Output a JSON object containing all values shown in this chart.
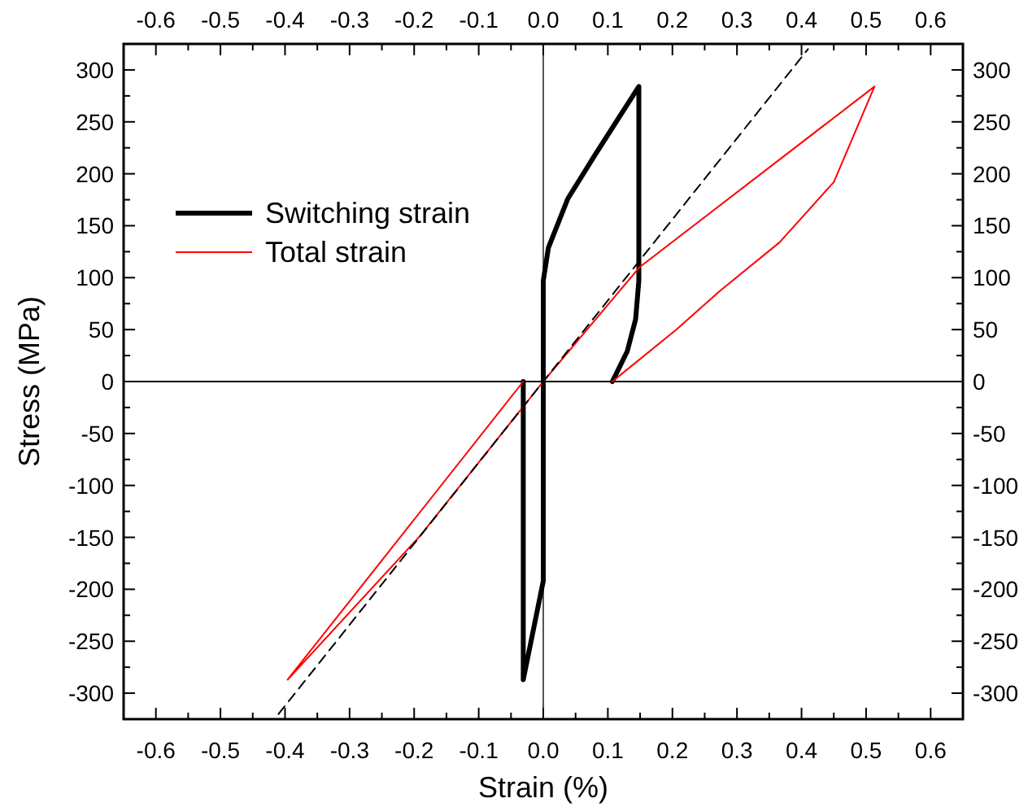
{
  "chart_data": {
    "type": "line",
    "xlabel": "Strain (%)",
    "ylabel": "Stress (MPa)",
    "xlim": [
      -0.65,
      0.65
    ],
    "ylim": [
      -325,
      325
    ],
    "xticks": [
      -0.6,
      {
        "value": -0.55,
        "label": null
      },
      -0.5,
      {
        "value": -0.45,
        "label": null
      },
      -0.4,
      {
        "value": -0.35,
        "label": null
      },
      -0.3,
      {
        "value": -0.25,
        "label": null
      },
      -0.2,
      {
        "value": -0.15,
        "label": null
      },
      -0.1,
      {
        "value": -0.05,
        "label": null
      },
      {
        "value": 0,
        "label": "0.0"
      },
      {
        "value": 0.05,
        "label": null
      },
      0.1,
      {
        "value": 0.15,
        "label": null
      },
      0.2,
      {
        "value": 0.25,
        "label": null
      },
      0.3,
      {
        "value": 0.35,
        "label": null
      },
      0.4,
      {
        "value": 0.45,
        "label": null
      },
      0.5,
      {
        "value": 0.55,
        "label": null
      },
      0.6
    ],
    "x2lim": [
      -0.65,
      0.65
    ],
    "x2ticks": [
      -0.6,
      {
        "value": -0.55,
        "label": null
      },
      -0.5,
      {
        "value": -0.45,
        "label": null
      },
      -0.4,
      {
        "value": -0.35,
        "label": null
      },
      -0.3,
      {
        "value": -0.25,
        "label": null
      },
      -0.2,
      {
        "value": -0.15,
        "label": null
      },
      -0.1,
      {
        "value": -0.05,
        "label": null
      },
      {
        "value": 0,
        "label": "0.0"
      },
      {
        "value": 0.05,
        "label": null
      },
      0.1,
      {
        "value": 0.15,
        "label": null
      },
      0.2,
      {
        "value": 0.25,
        "label": null
      },
      0.3,
      {
        "value": 0.35,
        "label": null
      },
      0.4,
      {
        "value": 0.45,
        "label": null
      },
      0.5,
      {
        "value": 0.55,
        "label": null
      },
      0.6
    ],
    "yticks": [
      -300,
      {
        "value": -275,
        "label": null
      },
      -250,
      {
        "value": -225,
        "label": null
      },
      -200,
      {
        "value": -175,
        "label": null
      },
      -150,
      {
        "value": -125,
        "label": null
      },
      -100,
      {
        "value": -75,
        "label": null
      },
      -50,
      {
        "value": -25,
        "label": null
      },
      0,
      {
        "value": 25,
        "label": null
      },
      50,
      {
        "value": 75,
        "label": null
      },
      100,
      {
        "value": 125,
        "label": null
      },
      150,
      {
        "value": 175,
        "label": null
      },
      200,
      {
        "value": 225,
        "label": null
      },
      250,
      {
        "value": 275,
        "label": null
      },
      300
    ],
    "y2lim": [
      -325,
      325
    ],
    "y2ticks": [
      -300,
      {
        "value": -275,
        "label": null
      },
      -250,
      {
        "value": -225,
        "label": null
      },
      -200,
      {
        "value": -175,
        "label": null
      },
      -150,
      {
        "value": -125,
        "label": null
      },
      -100,
      {
        "value": -75,
        "label": null
      },
      -50,
      {
        "value": -25,
        "label": null
      },
      0,
      {
        "value": 25,
        "label": null
      },
      50,
      {
        "value": 75,
        "label": null
      },
      100,
      {
        "value": 125,
        "label": null
      },
      150,
      {
        "value": 175,
        "label": null
      },
      200,
      {
        "value": 225,
        "label": null
      },
      250,
      {
        "value": 275,
        "label": null
      },
      300
    ],
    "grid": false,
    "legend": "top left",
    "marker": "none",
    "ref_lines": [
      {
        "axis": "x",
        "value": 0,
        "color": "#555555"
      },
      {
        "axis": "y",
        "value": 0,
        "color": "#000000"
      }
    ],
    "series": [
      {
        "name": "Switching strain",
        "color": "#000000",
        "x": [
          -0.031,
          -0.031,
          0.0,
          0.0,
          0.008,
          0.038,
          0.08,
          0.148,
          0.148,
          0.143,
          0.13,
          0.107
        ],
        "values": [
          0,
          -287,
          -192,
          97,
          129,
          176,
          218,
          284,
          97,
          60,
          29,
          0
        ]
      },
      {
        "name": "Total strain",
        "color": "#ff0000",
        "x": [
          -0.031,
          -0.396,
          -0.19,
          0,
          0.149,
          0.513,
          0.45,
          0.366,
          0.273,
          0.206,
          0.107
        ],
        "values": [
          0,
          -287,
          -148,
          0,
          110,
          284,
          192,
          134,
          87,
          50,
          0
        ]
      },
      {
        "color": "#000000",
        "line_style": "dashed",
        "x": [
          -0.41,
          0.41
        ],
        "values": [
          -320,
          320
        ]
      }
    ]
  }
}
